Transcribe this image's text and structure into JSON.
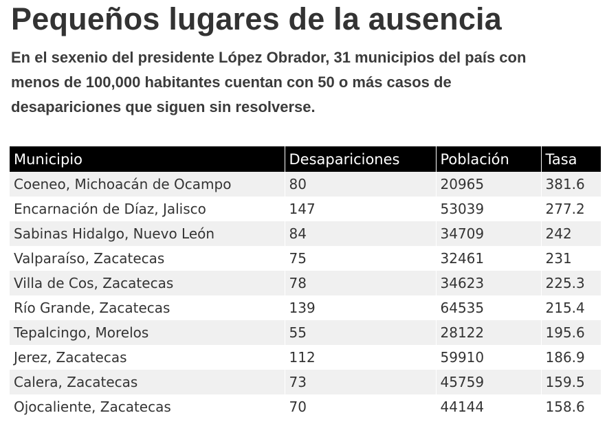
{
  "header": {
    "title": "Pequeños lugares de la ausencia",
    "subtitle": "En el sexenio del presidente López Obrador, 31 municipios del país con menos de 100,000 habitantes cuentan con 50 o más casos de desapariciones que siguen sin resolverse."
  },
  "chart_data": {
    "type": "table",
    "columns": [
      "Municipio",
      "Desapariciones",
      "Población",
      "Tasa"
    ],
    "rows": [
      [
        "Coeneo, Michoacán de Ocampo",
        "80",
        "20965",
        "381.6"
      ],
      [
        "Encarnación de Díaz, Jalisco",
        "147",
        "53039",
        "277.2"
      ],
      [
        "Sabinas Hidalgo, Nuevo León",
        "84",
        "34709",
        "242"
      ],
      [
        "Valparaíso, Zacatecas",
        "75",
        "32461",
        "231"
      ],
      [
        "Villa de Cos, Zacatecas",
        "78",
        "34623",
        "225.3"
      ],
      [
        "Río Grande, Zacatecas",
        "139",
        "64535",
        "215.4"
      ],
      [
        "Tepalcingo, Morelos",
        "55",
        "28122",
        "195.6"
      ],
      [
        "Jerez, Zacatecas",
        "112",
        "59910",
        "186.9"
      ],
      [
        "Calera, Zacatecas",
        "73",
        "45759",
        "159.5"
      ],
      [
        "Ojocaliente, Zacatecas",
        "70",
        "44144",
        "158.6"
      ]
    ]
  },
  "colors": {
    "header_bg": "#000000",
    "header_text": "#ffffff",
    "row_stripe": "#f0f0f0",
    "text": "#333333"
  }
}
